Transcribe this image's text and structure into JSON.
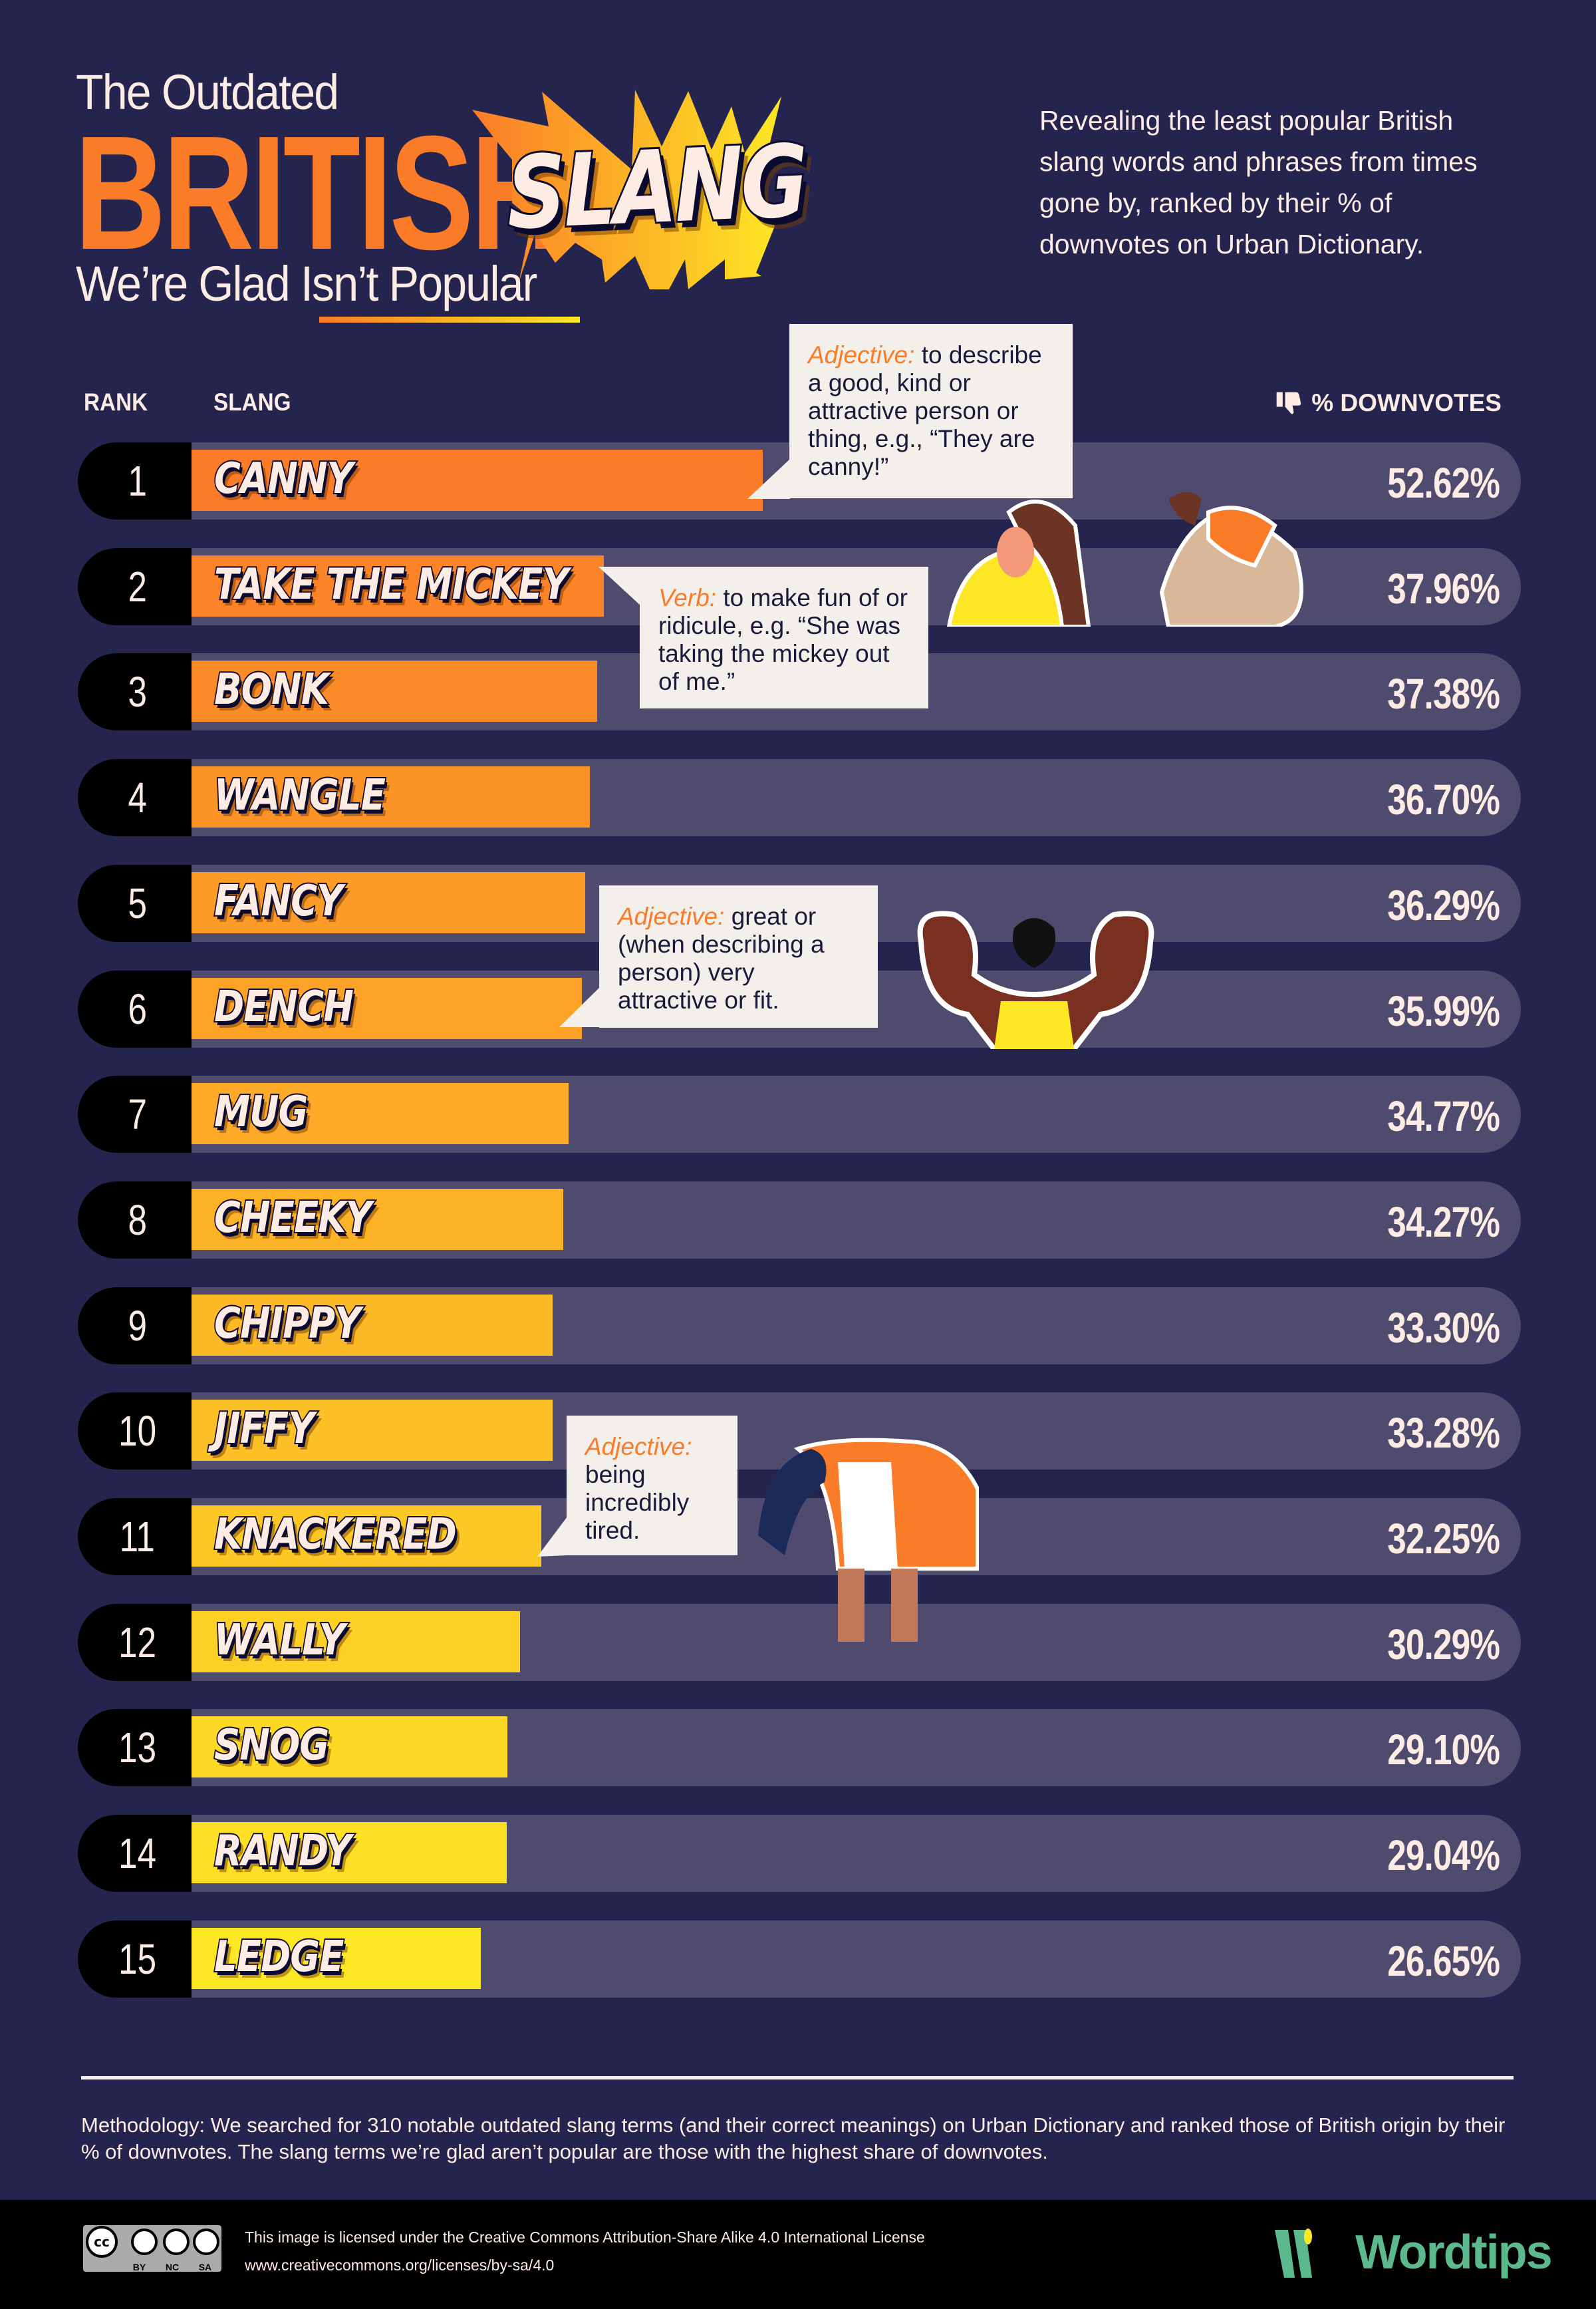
{
  "header": {
    "title_top": "The Outdated",
    "title_main": "BRITISH",
    "title_burst": "SLANG",
    "title_bottom": "We’re Glad Isn’t Popular",
    "description": "Revealing the least popular British slang words and phrases from times gone by, ranked by their % of downvotes on Urban Dictionary."
  },
  "colors": {
    "background": "#24244f",
    "track": "#4f4b6e",
    "bar_start": "#fb7c28",
    "bar_end": "#fde725",
    "accent": "#fb7c28",
    "brand": "#5cb98e"
  },
  "chart_data": {
    "type": "bar",
    "orientation": "horizontal",
    "columns": {
      "rank": "RANK",
      "slang": "SLANG",
      "value": "% DOWNVOTES"
    },
    "value_icon": "thumbs-down-icon",
    "xlim": [
      0,
      100
    ],
    "rows": [
      {
        "rank": "1",
        "slang": "CANNY",
        "value": 52.62,
        "label": "52.62%"
      },
      {
        "rank": "2",
        "slang": "TAKE THE MICKEY",
        "value": 37.96,
        "label": "37.96%"
      },
      {
        "rank": "3",
        "slang": "BONK",
        "value": 37.38,
        "label": "37.38%"
      },
      {
        "rank": "4",
        "slang": "WANGLE",
        "value": 36.7,
        "label": "36.70%"
      },
      {
        "rank": "5",
        "slang": "FANCY",
        "value": 36.29,
        "label": "36.29%"
      },
      {
        "rank": "6",
        "slang": "DENCH",
        "value": 35.99,
        "label": "35.99%"
      },
      {
        "rank": "7",
        "slang": "MUG",
        "value": 34.77,
        "label": "34.77%"
      },
      {
        "rank": "8",
        "slang": "CHEEKY",
        "value": 34.27,
        "label": "34.27%"
      },
      {
        "rank": "9",
        "slang": "CHIPPY",
        "value": 33.3,
        "label": "33.30%"
      },
      {
        "rank": "10",
        "slang": "JIFFY",
        "value": 33.28,
        "label": "33.28%"
      },
      {
        "rank": "11",
        "slang": "KNACKERED",
        "value": 32.25,
        "label": "32.25%"
      },
      {
        "rank": "12",
        "slang": "WALLY",
        "value": 30.29,
        "label": "30.29%"
      },
      {
        "rank": "13",
        "slang": "SNOG",
        "value": 29.1,
        "label": "29.10%"
      },
      {
        "rank": "14",
        "slang": "RANDY",
        "value": 29.04,
        "label": "29.04%"
      },
      {
        "rank": "15",
        "slang": "LEDGE",
        "value": 26.65,
        "label": "26.65%"
      }
    ],
    "annotations": [
      {
        "for": "CANNY",
        "pos": "Adjective:",
        "text": " to describe a good, kind or attractive person or thing, e.g., “They are canny!”"
      },
      {
        "for": "TAKE THE MICKEY",
        "pos": "Verb:",
        "text": " to make fun of or ridicule, e.g. “She was taking the mickey out of me.”"
      },
      {
        "for": "DENCH",
        "pos": "Adjective:",
        "text": " great or (when describing a person) very attractive or fit."
      },
      {
        "for": "KNACKERED",
        "pos": "Adjective:",
        "text": " being incredibly tired."
      }
    ]
  },
  "methodology": "Methodology: We searched for 310 notable outdated slang terms (and their correct meanings) on Urban Dictionary and ranked those of British origin by their % of downvotes. The slang terms we’re glad aren’t popular are those with the highest share of downvotes.",
  "footer": {
    "license_line": "This image is licensed under the Creative Commons Attribution-Share Alike 4.0 International License",
    "license_url": "www.creativecommons.org/licenses/by-sa/4.0",
    "cc_badges": [
      "BY",
      "NC",
      "SA"
    ],
    "brand": "Wordtips"
  }
}
